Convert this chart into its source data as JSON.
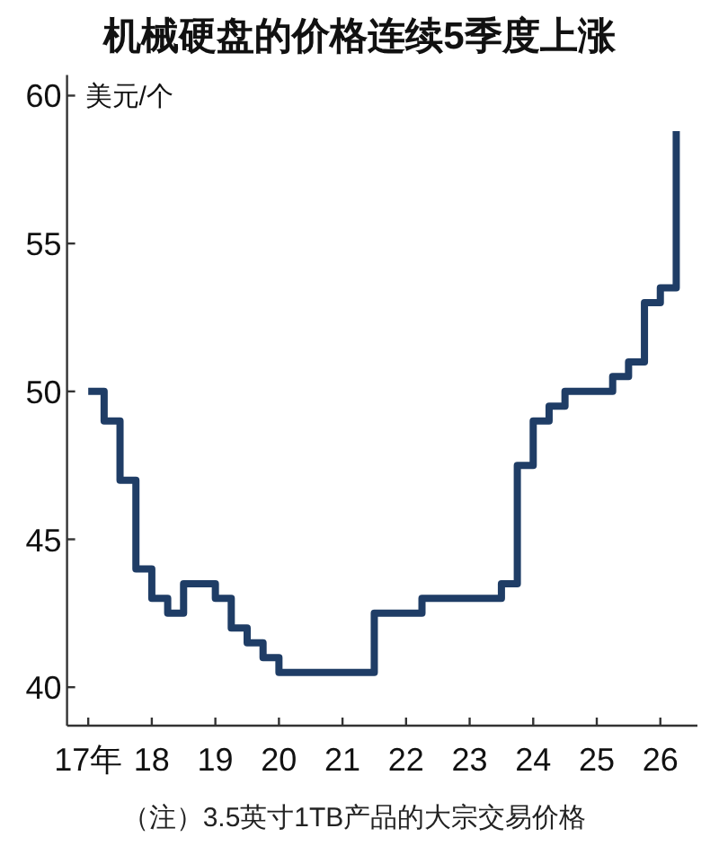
{
  "chart_data": {
    "type": "step",
    "title": "机械硬盘的价格连续5季度上涨",
    "ylabel": "美元/个",
    "annotations": [
      "（注）3.5英寸1TB产品的大宗交易价格"
    ],
    "x": [
      "2017-01",
      "2017-04",
      "2017-07",
      "2017-10",
      "2018-01",
      "2018-04",
      "2018-07",
      "2019-01",
      "2019-04",
      "2019-07",
      "2019-10",
      "2020-01",
      "2021-07",
      "2022-04",
      "2023-07",
      "2023-10",
      "2024-01",
      "2024-04",
      "2024-07",
      "2025-04",
      "2025-07",
      "2025-10",
      "2026-01",
      "2026-04"
    ],
    "series": [
      {
        "color": "#1f3d66",
        "values": [
          50,
          49,
          47,
          44,
          43,
          42.5,
          43.5,
          43,
          42,
          41.5,
          41,
          40.5,
          42.5,
          43,
          43.5,
          47.5,
          49,
          49.5,
          50,
          50.5,
          51,
          53,
          53.5,
          58.8
        ]
      }
    ],
    "xlim": [
      "2016-09",
      "2026-08"
    ],
    "ylim": [
      38.7,
      60.7
    ],
    "xticks": [
      {
        "value": "2017",
        "label": "17年"
      },
      {
        "value": "2018",
        "label": "18"
      },
      {
        "value": "2019",
        "label": "19"
      },
      {
        "value": "2020",
        "label": "20"
      },
      {
        "value": "2021",
        "label": "21"
      },
      {
        "value": "2022",
        "label": "22"
      },
      {
        "value": "2023",
        "label": "23"
      },
      {
        "value": "2024",
        "label": "24"
      },
      {
        "value": "2025",
        "label": "25"
      },
      {
        "value": "2026",
        "label": "26"
      }
    ],
    "yticks": [
      40,
      45,
      50,
      55,
      60
    ]
  }
}
